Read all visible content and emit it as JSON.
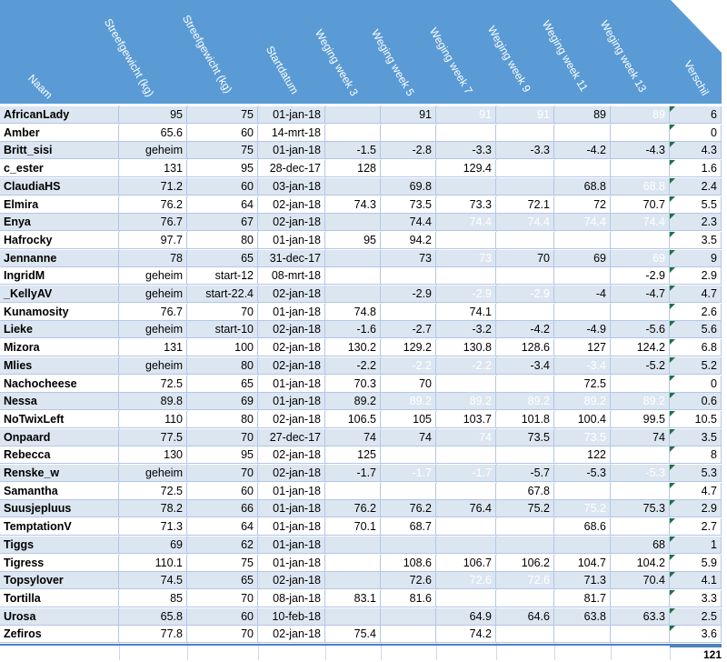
{
  "headers": [
    "Naam",
    "Streefgewicht (kg)",
    "Streefgewicht (kg)",
    "Startdatum",
    "Weging week 3",
    "Weging week 5",
    "Weging week 7",
    "Weging week 9",
    "Weging week 11",
    "Weging week 13",
    "Verschil"
  ],
  "columns": [
    "name",
    "start_weight",
    "target_weight",
    "start_date",
    "w3",
    "w5",
    "w7",
    "w9",
    "w11",
    "w13",
    "verschil"
  ],
  "colors": {
    "header_bg": "#5b9bd5",
    "row_odd": "#dce6f1",
    "row_even": "#ffffff",
    "flag": "#1e7145"
  },
  "rows": [
    {
      "name": "AfricanLady",
      "start_weight": "95",
      "target_weight": "75",
      "start_date": "01-jan-18",
      "w3": "",
      "w5": "91",
      "w7": "91",
      "w9": "91",
      "w11": "89",
      "w13": "89",
      "verschil": "6",
      "faint": [
        "w7",
        "w9",
        "w13"
      ]
    },
    {
      "name": "Amber",
      "start_weight": "65.6",
      "target_weight": "60",
      "start_date": "14-mrt-18",
      "w3": "",
      "w5": "",
      "w7": "",
      "w9": "",
      "w11": "",
      "w13": "",
      "verschil": "0",
      "faint": []
    },
    {
      "name": "Britt_sisi",
      "start_weight": "geheim",
      "target_weight": "75",
      "start_date": "01-jan-18",
      "w3": "-1.5",
      "w5": "-2.8",
      "w7": "-3.3",
      "w9": "-3.3",
      "w11": "-4.2",
      "w13": "-4.3",
      "verschil": "4.3",
      "faint": []
    },
    {
      "name": "c_ester",
      "start_weight": "131",
      "target_weight": "95",
      "start_date": "28-dec-17",
      "w3": "128",
      "w5": "",
      "w7": "129.4",
      "w9": "",
      "w11": "",
      "w13": "",
      "verschil": "1.6",
      "faint": []
    },
    {
      "name": "ClaudiaHS",
      "start_weight": "71.2",
      "target_weight": "60",
      "start_date": "03-jan-18",
      "w3": "",
      "w5": "69.8",
      "w7": "",
      "w9": "",
      "w11": "68.8",
      "w13": "68.8",
      "verschil": "2.4",
      "faint": [
        "w13"
      ]
    },
    {
      "name": "Elmira",
      "start_weight": "76.2",
      "target_weight": "64",
      "start_date": "02-jan-18",
      "w3": "74.3",
      "w5": "73.5",
      "w7": "73.3",
      "w9": "72.1",
      "w11": "72",
      "w13": "70.7",
      "verschil": "5.5",
      "faint": []
    },
    {
      "name": "Enya",
      "start_weight": "76.7",
      "target_weight": "67",
      "start_date": "02-jan-18",
      "w3": "",
      "w5": "74.4",
      "w7": "74.4",
      "w9": "74.4",
      "w11": "74.4",
      "w13": "74.4",
      "verschil": "2.3",
      "faint": [
        "w7",
        "w9",
        "w11",
        "w13"
      ]
    },
    {
      "name": "Hafrocky",
      "start_weight": "97.7",
      "target_weight": "80",
      "start_date": "01-jan-18",
      "w3": "95",
      "w5": "94.2",
      "w7": "",
      "w9": "",
      "w11": "",
      "w13": "",
      "verschil": "3.5",
      "faint": []
    },
    {
      "name": "Jennanne",
      "start_weight": "78",
      "target_weight": "65",
      "start_date": "31-dec-17",
      "w3": "",
      "w5": "73",
      "w7": "73",
      "w9": "70",
      "w11": "69",
      "w13": "69",
      "verschil": "9",
      "faint": [
        "w7",
        "w13"
      ]
    },
    {
      "name": "IngridM",
      "start_weight": "geheim",
      "target_weight": "start-12",
      "start_date": "08-mrt-18",
      "w3": "",
      "w5": "",
      "w7": "",
      "w9": "",
      "w11": "",
      "w13": "-2.9",
      "verschil": "2.9",
      "faint": []
    },
    {
      "name": "_KellyAV",
      "start_weight": "geheim",
      "target_weight": "start-22.4",
      "start_date": "02-jan-18",
      "w3": "",
      "w5": "-2.9",
      "w7": "-2.9",
      "w9": "-2.9",
      "w11": "-4",
      "w13": "-4.7",
      "verschil": "4.7",
      "faint": [
        "w7",
        "w9"
      ]
    },
    {
      "name": "Kunamosity",
      "start_weight": "76.7",
      "target_weight": "70",
      "start_date": "01-jan-18",
      "w3": "74.8",
      "w5": "",
      "w7": "74.1",
      "w9": "",
      "w11": "",
      "w13": "",
      "verschil": "2.6",
      "faint": []
    },
    {
      "name": "Lieke",
      "start_weight": "geheim",
      "target_weight": "start-10",
      "start_date": "02-jan-18",
      "w3": "-1.6",
      "w5": "-2.7",
      "w7": "-3.2",
      "w9": "-4.2",
      "w11": "-4.9",
      "w13": "-5.6",
      "verschil": "5.6",
      "faint": []
    },
    {
      "name": "Mizora",
      "start_weight": "131",
      "target_weight": "100",
      "start_date": "02-jan-18",
      "w3": "130.2",
      "w5": "129.2",
      "w7": "130.8",
      "w9": "128.6",
      "w11": "127",
      "w13": "124.2",
      "verschil": "6.8",
      "faint": []
    },
    {
      "name": "Mlies",
      "start_weight": "geheim",
      "target_weight": "80",
      "start_date": "02-jan-18",
      "w3": "-2.2",
      "w5": "-2.2",
      "w7": "-2.2",
      "w9": "-3.4",
      "w11": "-3.4",
      "w13": "-5.2",
      "verschil": "5.2",
      "faint": [
        "w5",
        "w7",
        "w11"
      ]
    },
    {
      "name": "Nachocheese",
      "start_weight": "72.5",
      "target_weight": "65",
      "start_date": "01-jan-18",
      "w3": "70.3",
      "w5": "70",
      "w7": "",
      "w9": "",
      "w11": "72.5",
      "w13": "",
      "verschil": "0",
      "faint": []
    },
    {
      "name": "Nessa",
      "start_weight": "89.8",
      "target_weight": "69",
      "start_date": "01-jan-18",
      "w3": "89.2",
      "w5": "89.2",
      "w7": "89.2",
      "w9": "89.2",
      "w11": "89.2",
      "w13": "89.2",
      "verschil": "0.6",
      "faint": [
        "w5",
        "w7",
        "w9",
        "w11",
        "w13"
      ]
    },
    {
      "name": "NoTwixLeft",
      "start_weight": "110",
      "target_weight": "80",
      "start_date": "02-jan-18",
      "w3": "106.5",
      "w5": "105",
      "w7": "103.7",
      "w9": "101.8",
      "w11": "100.4",
      "w13": "99.5",
      "verschil": "10.5",
      "faint": []
    },
    {
      "name": "Onpaard",
      "start_weight": "77.5",
      "target_weight": "70",
      "start_date": "27-dec-17",
      "w3": "74",
      "w5": "74",
      "w7": "74",
      "w9": "73.5",
      "w11": "73.5",
      "w13": "74",
      "verschil": "3.5",
      "faint": [
        "w7",
        "w11"
      ]
    },
    {
      "name": "Rebecca",
      "start_weight": "130",
      "target_weight": "95",
      "start_date": "02-jan-18",
      "w3": "125",
      "w5": "",
      "w7": "",
      "w9": "",
      "w11": "122",
      "w13": "",
      "verschil": "8",
      "faint": []
    },
    {
      "name": "Renske_w",
      "start_weight": "geheim",
      "target_weight": "70",
      "start_date": "02-jan-18",
      "w3": "-1.7",
      "w5": "-1.7",
      "w7": "-1.7",
      "w9": "-5.7",
      "w11": "-5.3",
      "w13": "-5.3",
      "verschil": "5.3",
      "faint": [
        "w5",
        "w7",
        "w13"
      ]
    },
    {
      "name": "Samantha",
      "start_weight": "72.5",
      "target_weight": "60",
      "start_date": "01-jan-18",
      "w3": "",
      "w5": "",
      "w7": "",
      "w9": "67.8",
      "w11": "",
      "w13": "",
      "verschil": "4.7",
      "faint": []
    },
    {
      "name": "Suusjepluus",
      "start_weight": "78.2",
      "target_weight": "66",
      "start_date": "01-jan-18",
      "w3": "76.2",
      "w5": "76.2",
      "w7": "76.4",
      "w9": "75.2",
      "w11": "75.2",
      "w13": "75.3",
      "verschil": "2.9",
      "faint": [
        "w11"
      ]
    },
    {
      "name": "TemptationV",
      "start_weight": "71.3",
      "target_weight": "64",
      "start_date": "01-jan-18",
      "w3": "70.1",
      "w5": "68.7",
      "w7": "",
      "w9": "",
      "w11": "68.6",
      "w13": "",
      "verschil": "2.7",
      "faint": []
    },
    {
      "name": "Tiggs",
      "start_weight": "69",
      "target_weight": "62",
      "start_date": "01-jan-18",
      "w3": "",
      "w5": "",
      "w7": "",
      "w9": "",
      "w11": "",
      "w13": "68",
      "verschil": "1",
      "faint": []
    },
    {
      "name": "Tigress",
      "start_weight": "110.1",
      "target_weight": "75",
      "start_date": "01-jan-18",
      "w3": "",
      "w5": "108.6",
      "w7": "106.7",
      "w9": "106.2",
      "w11": "104.7",
      "w13": "104.2",
      "verschil": "5.9",
      "faint": []
    },
    {
      "name": "Topsylover",
      "start_weight": "74.5",
      "target_weight": "65",
      "start_date": "02-jan-18",
      "w3": "",
      "w5": "72.6",
      "w7": "72.6",
      "w9": "72.6",
      "w11": "71.3",
      "w13": "70.4",
      "verschil": "4.1",
      "faint": [
        "w7",
        "w9"
      ]
    },
    {
      "name": "Tortilla",
      "start_weight": "85",
      "target_weight": "70",
      "start_date": "08-jan-18",
      "w3": "83.1",
      "w5": "81.6",
      "w7": "",
      "w9": "",
      "w11": "81.7",
      "w13": "",
      "verschil": "3.3",
      "faint": []
    },
    {
      "name": "Urosa",
      "start_weight": "65.8",
      "target_weight": "60",
      "start_date": "10-feb-18",
      "w3": "",
      "w5": "",
      "w7": "64.9",
      "w9": "64.6",
      "w11": "63.8",
      "w13": "63.3",
      "verschil": "2.5",
      "faint": []
    },
    {
      "name": "Zefiros",
      "start_weight": "77.8",
      "target_weight": "70",
      "start_date": "02-jan-18",
      "w3": "75.4",
      "w5": "",
      "w7": "74.2",
      "w9": "",
      "w11": "",
      "w13": "",
      "verschil": "3.6",
      "faint": []
    }
  ],
  "total": "121"
}
